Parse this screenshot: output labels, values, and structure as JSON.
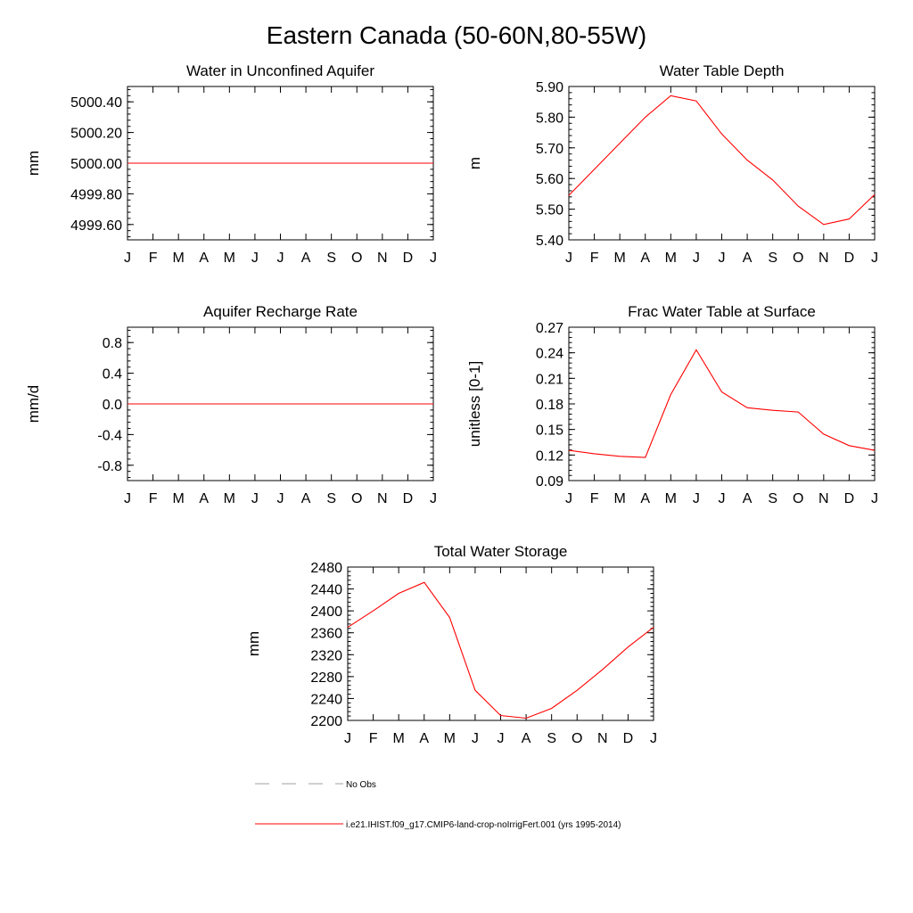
{
  "figure": {
    "title": "Eastern Canada (50-60N,80-55W)"
  },
  "legend": {
    "obs_label": "No Obs",
    "model_label": "i.e21.IHIST.f09_g17.CMIP6-land-crop-noIrrigFert.001 (yrs 1995-2014)",
    "obs_color": "#a0a0a0",
    "model_color": "#ff0000"
  },
  "chart_data": [
    {
      "type": "line",
      "title": "Water in Unconfined Aquifer",
      "ylabel": "mm",
      "xlabel": "",
      "categories": [
        "J",
        "F",
        "M",
        "A",
        "M",
        "J",
        "J",
        "A",
        "S",
        "O",
        "N",
        "D",
        "J"
      ],
      "yticks": [
        "4999.60",
        "4999.80",
        "5000.00",
        "5000.20",
        "5000.40"
      ],
      "ylim": [
        4999.5,
        5000.5
      ],
      "grid": false,
      "series": [
        {
          "color": "#ff0000",
          "values": [
            5000.0,
            5000.0,
            5000.0,
            5000.0,
            5000.0,
            5000.0,
            5000.0,
            5000.0,
            5000.0,
            5000.0,
            5000.0,
            5000.0,
            5000.0
          ]
        }
      ]
    },
    {
      "type": "line",
      "title": "Water Table Depth",
      "ylabel": "m",
      "xlabel": "",
      "categories": [
        "J",
        "F",
        "M",
        "A",
        "M",
        "J",
        "J",
        "A",
        "S",
        "O",
        "N",
        "D",
        "J"
      ],
      "yticks": [
        "5.40",
        "5.50",
        "5.60",
        "5.70",
        "5.80",
        "5.90"
      ],
      "ylim": [
        5.4,
        5.9
      ],
      "grid": false,
      "series": [
        {
          "color": "#ff0000",
          "values": [
            5.545,
            5.63,
            5.715,
            5.8,
            5.87,
            5.853,
            5.745,
            5.66,
            5.595,
            5.51,
            5.45,
            5.468,
            5.548
          ]
        }
      ]
    },
    {
      "type": "line",
      "title": "Aquifer Recharge Rate",
      "ylabel": "mm/d",
      "xlabel": "",
      "categories": [
        "J",
        "F",
        "M",
        "A",
        "M",
        "J",
        "J",
        "A",
        "S",
        "O",
        "N",
        "D",
        "J"
      ],
      "yticks": [
        "-0.8",
        "-0.4",
        "0.0",
        "0.4",
        "0.8"
      ],
      "ylim": [
        -1.0,
        1.0
      ],
      "grid": false,
      "series": [
        {
          "color": "#ff0000",
          "values": [
            0,
            0,
            0,
            0,
            0,
            0,
            0,
            0,
            0,
            0,
            0,
            0,
            0
          ]
        }
      ]
    },
    {
      "type": "line",
      "title": "Frac Water Table at Surface",
      "ylabel": "unitless [0-1]",
      "xlabel": "",
      "categories": [
        "J",
        "F",
        "M",
        "A",
        "M",
        "J",
        "J",
        "A",
        "S",
        "O",
        "N",
        "D",
        "J"
      ],
      "yticks": [
        "0.09",
        "0.12",
        "0.15",
        "0.18",
        "0.21",
        "0.24",
        "0.27"
      ],
      "ylim": [
        0.09,
        0.27
      ],
      "grid": false,
      "series": [
        {
          "color": "#ff0000",
          "values": [
            0.1255,
            0.1215,
            0.1185,
            0.1172,
            0.191,
            0.2435,
            0.194,
            0.1755,
            0.1725,
            0.1705,
            0.1445,
            0.131,
            0.1255
          ]
        }
      ]
    },
    {
      "type": "line",
      "title": "Total Water Storage",
      "ylabel": "mm",
      "xlabel": "",
      "categories": [
        "J",
        "F",
        "M",
        "A",
        "M",
        "J",
        "J",
        "A",
        "S",
        "O",
        "N",
        "D",
        "J"
      ],
      "yticks": [
        "2200",
        "2240",
        "2280",
        "2320",
        "2360",
        "2400",
        "2440",
        "2480"
      ],
      "ylim": [
        2200,
        2480
      ],
      "grid": false,
      "series": [
        {
          "color": "#ff0000",
          "values": [
            2370,
            2400,
            2432,
            2452,
            2388,
            2255,
            2209,
            2204,
            2222,
            2255,
            2293,
            2334,
            2370
          ]
        }
      ]
    }
  ]
}
